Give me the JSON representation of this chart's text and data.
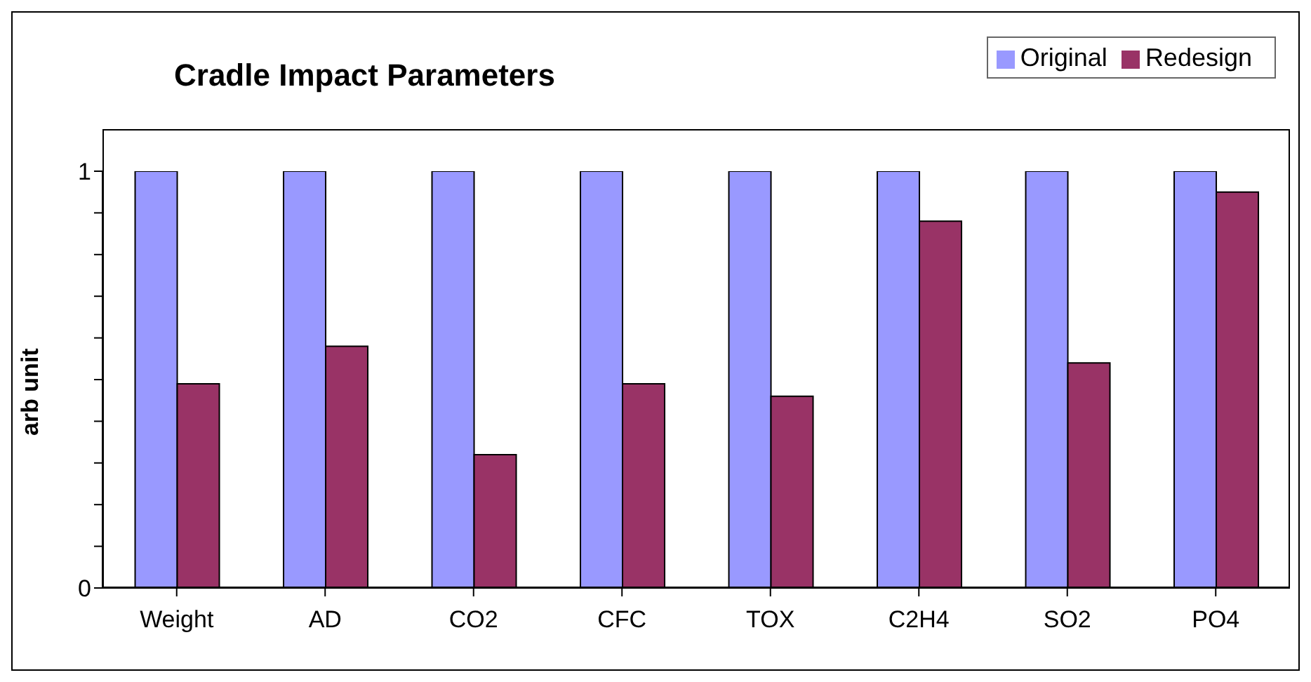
{
  "chart_data": {
    "type": "bar",
    "title": "Cradle Impact Parameters",
    "ylabel": "arb unit",
    "categories": [
      "Weight",
      "AD",
      "CO2",
      "CFC",
      "TOX",
      "C2H4",
      "SO2",
      "PO4"
    ],
    "series": [
      {
        "name": "Original",
        "color": "#9999ff",
        "values": [
          1,
          1,
          1,
          1,
          1,
          1,
          1,
          1
        ]
      },
      {
        "name": "Redesign",
        "color": "#993366",
        "values": [
          0.49,
          0.58,
          0.32,
          0.49,
          0.46,
          0.88,
          0.54,
          0.95
        ]
      }
    ],
    "ylim": [
      0,
      1
    ],
    "yticks": [
      0,
      {
        "value": 0.1,
        "label": null
      },
      {
        "value": 0.2,
        "label": null
      },
      {
        "value": 0.3,
        "label": null
      },
      {
        "value": 0.4,
        "label": null
      },
      {
        "value": 0.5,
        "label": null
      },
      {
        "value": 0.6,
        "label": null
      },
      {
        "value": 0.7,
        "label": null
      },
      {
        "value": 0.8,
        "label": null
      },
      {
        "value": 0.9,
        "label": null
      },
      1
    ],
    "legend": "top right",
    "grid": false
  }
}
